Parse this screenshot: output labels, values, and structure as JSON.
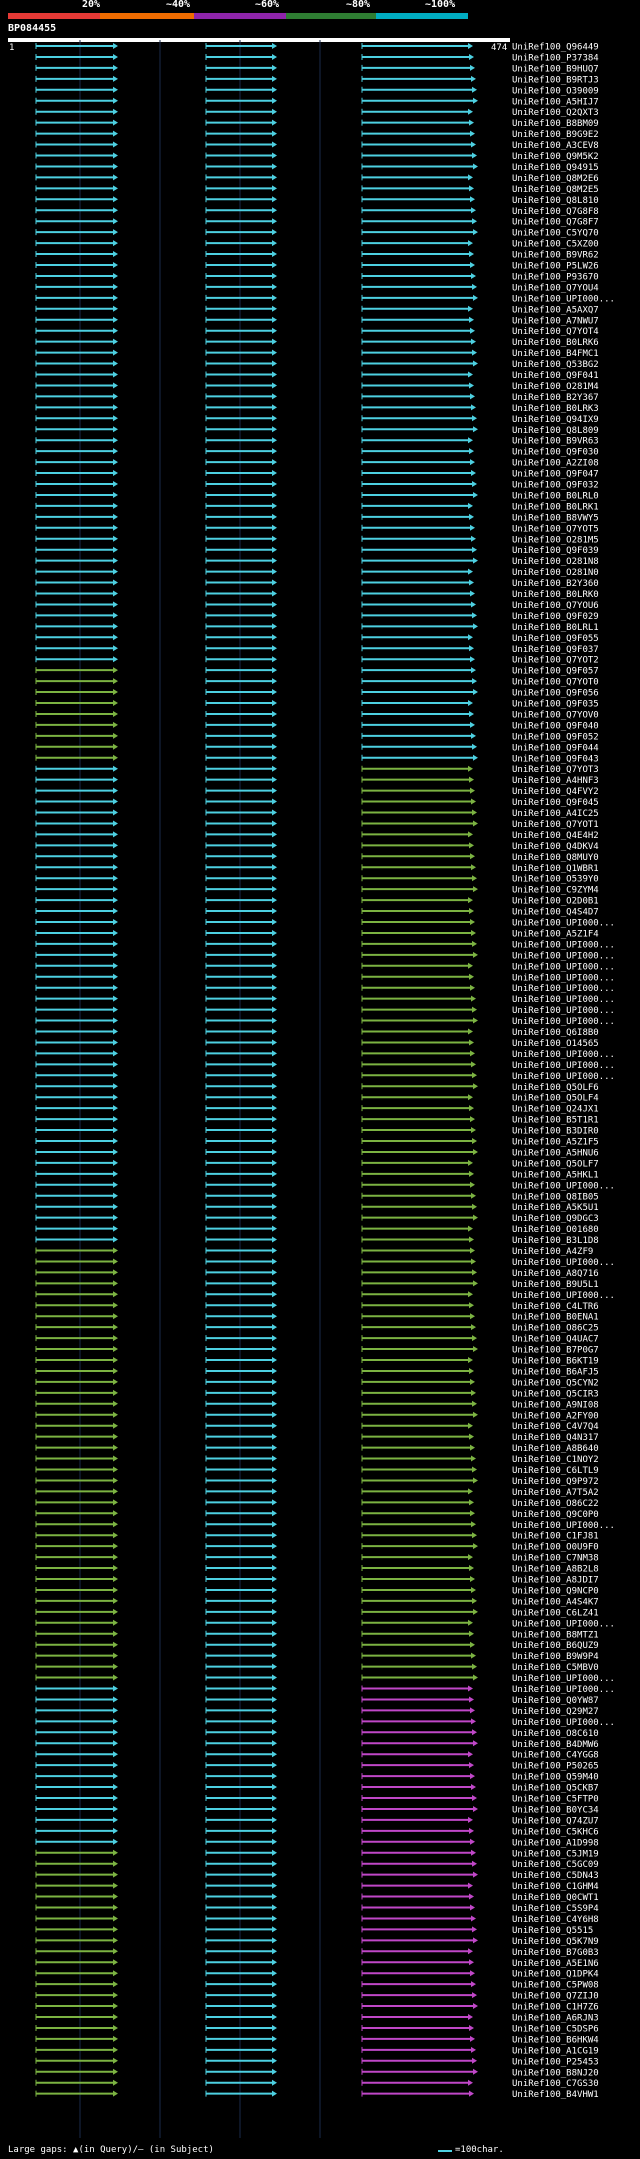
{
  "header": {
    "scale_labels": [
      "20%",
      "~40%",
      "~60%",
      "~80%",
      "~100%"
    ],
    "colors": [
      "#e53935",
      "#ef6c00",
      "#8e24aa",
      "#2e7d32",
      "#00acc1"
    ],
    "query_id": "BP084455",
    "query_start": "1",
    "query_end": "474"
  },
  "footer": {
    "gap_legend": "Large gaps: ▲(in Query)/— (in Subject)",
    "scale_legend": "=100char."
  },
  "hits": [
    "UniRef100_Q96449",
    "UniRef100_P37384",
    "UniRef100_B9HUQ7",
    "UniRef100_B9RTJ3",
    "UniRef100_O39009",
    "UniRef100_A5HIJ7",
    "UniRef100_Q2QXT3",
    "UniRef100_B8BM09",
    "UniRef100_B9G9E2",
    "UniRef100_A3CEV8",
    "UniRef100_Q9M5K2",
    "UniRef100_Q94915",
    "UniRef100_Q8M2E6",
    "UniRef100_Q8M2E5",
    "UniRef100_Q8L810",
    "UniRef100_Q7G8F8",
    "UniRef100_Q7G8F7",
    "UniRef100_C5YQ70",
    "UniRef100_C5XZ00",
    "UniRef100_B9VR62",
    "UniRef100_P5LW26",
    "UniRef100_P93670",
    "UniRef100_Q7YOU4",
    "UniRef100_UPI000...",
    "UniRef100_A5AXQ7",
    "UniRef100_A7NWU7",
    "UniRef100_Q7YOT4",
    "UniRef100_B0LRK6",
    "UniRef100_B4FMC1",
    "UniRef100_Q53BG2",
    "UniRef100_Q9F041",
    "UniRef100_O281M4",
    "UniRef100_B2Y367",
    "UniRef100_B0LRK3",
    "UniRef100_Q94IX9",
    "UniRef100_Q8L809",
    "UniRef100_B9VR63",
    "UniRef100_Q9F030",
    "UniRef100_A2ZI08",
    "UniRef100_Q9F047",
    "UniRef100_Q9F032",
    "UniRef100_B0LRL0",
    "UniRef100_B0LRK1",
    "UniRef100_B8VWY5",
    "UniRef100_Q7YOT5",
    "UniRef100_O281M5",
    "UniRef100_Q9F039",
    "UniRef100_O281N8",
    "UniRef100_O281N0",
    "UniRef100_B2Y360",
    "UniRef100_B0LRK0",
    "UniRef100_Q7YOU6",
    "UniRef100_Q9F029",
    "UniRef100_B0LRL1",
    "UniRef100_Q9F055",
    "UniRef100_Q9F037",
    "UniRef100_Q7YOT2",
    "UniRef100_Q9F057",
    "UniRef100_Q7YOT0",
    "UniRef100_Q9F056",
    "UniRef100_Q9F035",
    "UniRef100_Q7YOV0",
    "UniRef100_Q9F040",
    "UniRef100_Q9F052",
    "UniRef100_Q9F044",
    "UniRef100_Q9F043",
    "UniRef100_Q7YOT3",
    "UniRef100_A4HNF3",
    "UniRef100_Q4FVY2",
    "UniRef100_Q9F045",
    "UniRef100_A4IC25",
    "UniRef100_Q7YOT1",
    "UniRef100_Q4E4H2",
    "UniRef100_Q4DKV4",
    "UniRef100_Q8MUY0",
    "UniRef100_Q1WBR1",
    "UniRef100_O539Y0",
    "UniRef100_C9ZYM4",
    "UniRef100_O2D0B1",
    "UniRef100_Q4S4D7",
    "UniRef100_UPI000...",
    "UniRef100_A5Z1F4",
    "UniRef100_UPI000...",
    "UniRef100_UPI000...",
    "UniRef100_UPI000...",
    "UniRef100_UPI000...",
    "UniRef100_UPI000...",
    "UniRef100_UPI000...",
    "UniRef100_UPI000...",
    "UniRef100_UPI000...",
    "UniRef100_Q6I8B0",
    "UniRef100_O14565",
    "UniRef100_UPI000...",
    "UniRef100_UPI000...",
    "UniRef100_UPI000...",
    "UniRef100_Q5OLF6",
    "UniRef100_Q5OLF4",
    "UniRef100_Q24JX1",
    "UniRef100_B5T1R1",
    "UniRef100_B3DIR0",
    "UniRef100_A5Z1F5",
    "UniRef100_A5HNU6",
    "UniRef100_Q5OLF7",
    "UniRef100_A5HKL1",
    "UniRef100_UPI000...",
    "UniRef100_Q8IB05",
    "UniRef100_A5K5U1",
    "UniRef100_Q9DGC3",
    "UniRef100_O01680",
    "UniRef100_B3L1D8",
    "UniRef100_A4ZF9",
    "UniRef100_UPI000...",
    "UniRef100_A8Q716",
    "UniRef100_B9U5L1",
    "UniRef100_UPI000...",
    "UniRef100_C4LTR6",
    "UniRef100_B0ENA1",
    "UniRef100_O86C25",
    "UniRef100_Q4UAC7",
    "UniRef100_B7P0G7",
    "UniRef100_B6KT19",
    "UniRef100_B6AFJ5",
    "UniRef100_Q5CYN2",
    "UniRef100_Q5CIR3",
    "UniRef100_A9NI08",
    "UniRef100_A2FY00",
    "UniRef100_C4V7Q4",
    "UniRef100_Q4N317",
    "UniRef100_A8B640",
    "UniRef100_C1NOY2",
    "UniRef100_C6LTL9",
    "UniRef100_Q9P972",
    "UniRef100_A7T5A2",
    "UniRef100_O86C22",
    "UniRef100_Q9C0P0",
    "UniRef100_UPI000...",
    "UniRef100_C1FJ81",
    "UniRef100_O0U9F0",
    "UniRef100_C7NM38",
    "UniRef100_A8B2L8",
    "UniRef100_A8JDI7",
    "UniRef100_Q9NCP0",
    "UniRef100_A4S4K7",
    "UniRef100_C6LZ41",
    "UniRef100_UPI000...",
    "UniRef100_B8MTZ1",
    "UniRef100_B6QUZ9",
    "UniRef100_B9W9P4",
    "UniRef100_C5MBV0",
    "UniRef100_UPI000...",
    "UniRef100_UPI000...",
    "UniRef100_Q0YW87",
    "UniRef100_Q29M27",
    "UniRef100_UPI000...",
    "UniRef100_O8C610",
    "UniRef100_B4DMW6",
    "UniRef100_C4YGG8",
    "UniRef100_P50265",
    "UniRef100_Q59M40",
    "UniRef100_Q5CKB7",
    "UniRef100_C5FTP0",
    "UniRef100_B0YC34",
    "UniRef100_Q74ZU7",
    "UniRef100_C5KHC6",
    "UniRef100_A1D998",
    "UniRef100_C5JM19",
    "UniRef100_C5GC09",
    "UniRef100_C5DN43",
    "UniRef100_C1GHM4",
    "UniRef100_Q0CWT1",
    "UniRef100_C5S9P4",
    "UniRef100_C4Y6H8",
    "UniRef100_Q5515",
    "UniRef100_Q5K7N9",
    "UniRef100_B7G0B3",
    "UniRef100_A5E1N6",
    "UniRef100_Q1DPK4",
    "UniRef100_C5PW08",
    "UniRef100_Q7ZIJ0",
    "UniRef100_C1H7Z6",
    "UniRef100_A6RJN3",
    "UniRef100_C5DSP6",
    "UniRef100_B6HKW4",
    "UniRef100_A1CG19",
    "UniRef100_P25453",
    "UniRef100_B8NJ20",
    "UniRef100_C7GS30",
    "UniRef100_B4VHW1"
  ]
}
